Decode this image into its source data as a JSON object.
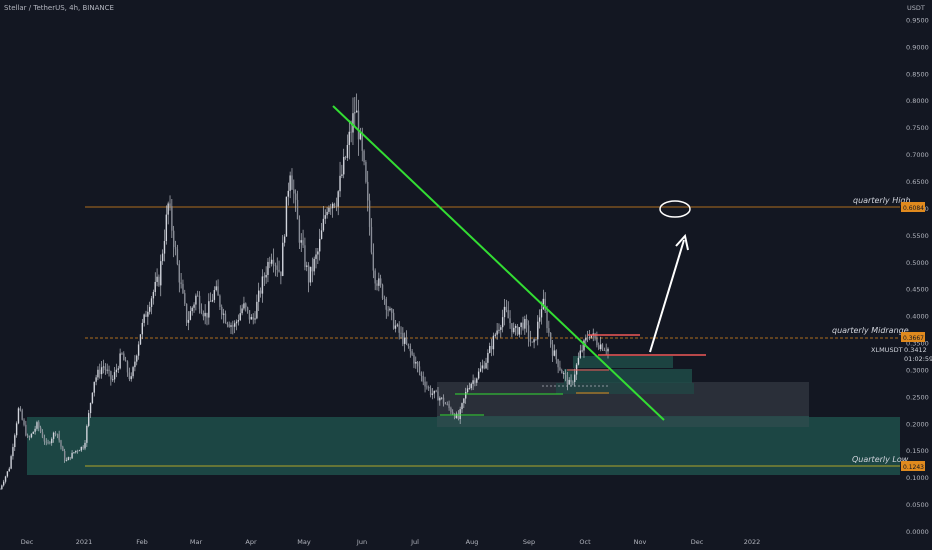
{
  "header": {
    "symbol_title": "Stellar / TetherUS, 4h, BINANCE"
  },
  "colors": {
    "background": "#131722",
    "candles": "#d1d4dc",
    "trendline": "#33dd33",
    "level_line": "#e08a1e",
    "resistance": "#f05858",
    "zone_teal": "#1f4f4a",
    "zone_gray": "#2e323c",
    "arrow": "#ffffff"
  },
  "chart_data": {
    "type": "candlestick",
    "y_unit": "USDT",
    "ylim": [
      0.0,
      1.0
    ],
    "y_ticks": [
      "0.9500",
      "0.9000",
      "0.8500",
      "0.8000",
      "0.7500",
      "0.7000",
      "0.6500",
      "0.6000",
      "0.5500",
      "0.5000",
      "0.4500",
      "0.4000",
      "0.3500",
      "0.3000",
      "0.2500",
      "0.2000",
      "0.1500",
      "0.1000",
      "0.0500",
      "0.0000"
    ],
    "x_ticks": [
      "Dec",
      "2021",
      "Feb",
      "Mar",
      "Apr",
      "May",
      "Jun",
      "Jul",
      "Aug",
      "Sep",
      "Oct",
      "Nov",
      "Dec",
      "2022"
    ],
    "price_path": [
      [
        0,
        0.08
      ],
      [
        2,
        0.12
      ],
      [
        4,
        0.23
      ],
      [
        6,
        0.17
      ],
      [
        8,
        0.2
      ],
      [
        10,
        0.16
      ],
      [
        12,
        0.19
      ],
      [
        14,
        0.13
      ],
      [
        16,
        0.15
      ],
      [
        18,
        0.16
      ],
      [
        20,
        0.28
      ],
      [
        22,
        0.31
      ],
      [
        24,
        0.28
      ],
      [
        26,
        0.33
      ],
      [
        28,
        0.28
      ],
      [
        30,
        0.37
      ],
      [
        32,
        0.43
      ],
      [
        34,
        0.47
      ],
      [
        36,
        0.61
      ],
      [
        38,
        0.49
      ],
      [
        40,
        0.39
      ],
      [
        42,
        0.44
      ],
      [
        44,
        0.4
      ],
      [
        46,
        0.45
      ],
      [
        48,
        0.4
      ],
      [
        50,
        0.38
      ],
      [
        52,
        0.42
      ],
      [
        54,
        0.39
      ],
      [
        56,
        0.46
      ],
      [
        58,
        0.52
      ],
      [
        60,
        0.48
      ],
      [
        62,
        0.68
      ],
      [
        64,
        0.55
      ],
      [
        66,
        0.47
      ],
      [
        68,
        0.52
      ],
      [
        70,
        0.61
      ],
      [
        72,
        0.62
      ],
      [
        74,
        0.7
      ],
      [
        76,
        0.79
      ],
      [
        78,
        0.66
      ],
      [
        80,
        0.48
      ],
      [
        82,
        0.44
      ],
      [
        84,
        0.39
      ],
      [
        86,
        0.36
      ],
      [
        88,
        0.33
      ],
      [
        90,
        0.29
      ],
      [
        92,
        0.26
      ],
      [
        94,
        0.25
      ],
      [
        96,
        0.23
      ],
      [
        98,
        0.21
      ],
      [
        100,
        0.27
      ],
      [
        102,
        0.29
      ],
      [
        104,
        0.32
      ],
      [
        106,
        0.37
      ],
      [
        108,
        0.41
      ],
      [
        110,
        0.37
      ],
      [
        112,
        0.39
      ],
      [
        114,
        0.34
      ],
      [
        116,
        0.43
      ],
      [
        118,
        0.34
      ],
      [
        120,
        0.3
      ],
      [
        122,
        0.27
      ],
      [
        124,
        0.33
      ],
      [
        126,
        0.37
      ],
      [
        128,
        0.35
      ],
      [
        130,
        0.34
      ]
    ],
    "trendline": {
      "from": [
        78,
        0.8
      ],
      "to": [
        153,
        0.22
      ]
    },
    "levels": [
      {
        "name": "quarterly High",
        "value": 0.6084,
        "style": "solid"
      },
      {
        "name": "quarterly Midrange",
        "value": 0.3667,
        "style": "dashed"
      },
      {
        "name": "Quarterly Low",
        "value": 0.1243,
        "style": "solid"
      }
    ],
    "current": {
      "symbol": "XLMUSDT",
      "price": "0.3412",
      "countdown": "01:02:59"
    }
  },
  "annotations": {
    "level_labels": [
      "quarterly High",
      "quarterly  Midrange",
      "Quarterly Low"
    ],
    "level_tags": [
      "0.6084",
      "0.3667",
      "0.1243"
    ],
    "symbol": "XLMUSDT",
    "price": "0.3412",
    "countdown": "01:02:59",
    "axis_unit": "USDT"
  }
}
